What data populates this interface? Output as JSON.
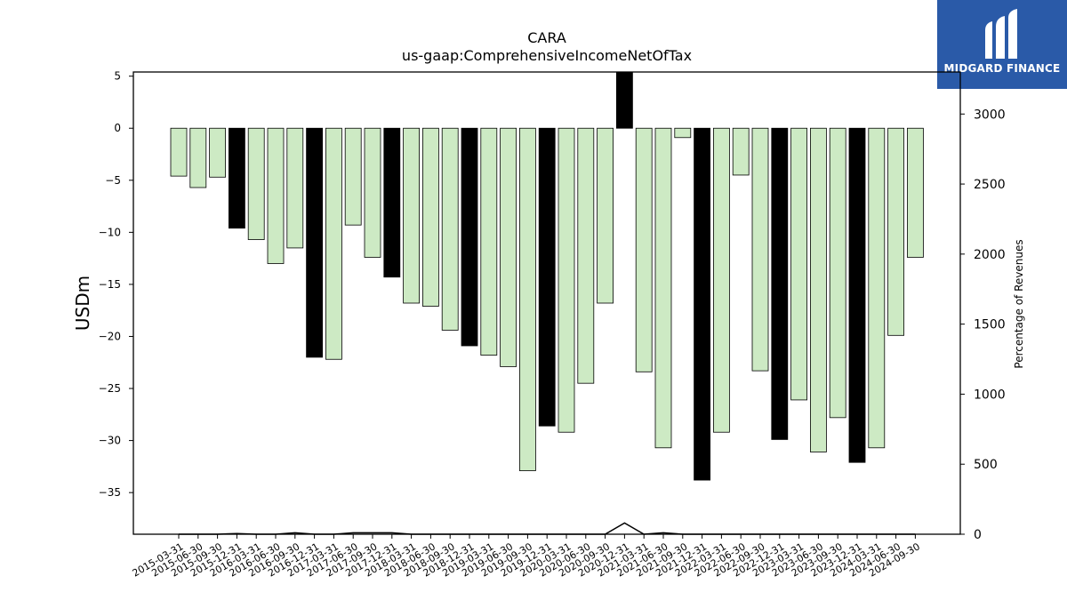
{
  "logo": {
    "text": "MIDGARD FINANCE",
    "icon": "midgard-logo-icon",
    "color": "#2a5aa8"
  },
  "chart_data": {
    "type": "bar",
    "title": "CARA",
    "subtitle": "us-gaap:ComprehensiveIncomeNetOfTax",
    "ylabel": "USDm",
    "y2label": "Percentage of Revenues",
    "ylim": [
      -39,
      5.4
    ],
    "y2lim": [
      0,
      3300
    ],
    "yticks": [
      5,
      0,
      -5,
      -10,
      -15,
      -20,
      -25,
      -30,
      -35
    ],
    "y2ticks": [
      0,
      500,
      1000,
      1500,
      2000,
      2500,
      3000
    ],
    "categories": [
      "2015-03-31",
      "2015-06-30",
      "2015-09-30",
      "2015-12-31",
      "2016-03-31",
      "2016-06-30",
      "2016-09-30",
      "2016-12-31",
      "2017-03-31",
      "2017-06-30",
      "2017-09-30",
      "2017-12-31",
      "2018-03-31",
      "2018-06-30",
      "2018-09-30",
      "2018-12-31",
      "2019-03-31",
      "2019-06-30",
      "2019-09-30",
      "2019-12-31",
      "2020-03-31",
      "2020-06-30",
      "2020-09-30",
      "2020-12-31",
      "2021-03-31",
      "2021-06-30",
      "2021-09-30",
      "2021-12-31",
      "2022-03-31",
      "2022-06-30",
      "2022-09-30",
      "2022-12-31",
      "2023-03-31",
      "2023-06-30",
      "2023-09-30",
      "2023-12-31",
      "2024-03-31",
      "2024-06-30",
      "2024-09-30"
    ],
    "series": [
      {
        "values": [
          -4.6,
          -5.7,
          -4.7,
          -9.6,
          -10.7,
          -13,
          -11.5,
          -22,
          -22.2,
          -9.3,
          -12.4,
          -14.3,
          -16.8,
          -17.1,
          -19.4,
          -20.9,
          -21.8,
          -22.9,
          -32.9,
          -28.6,
          -29.2,
          -24.5,
          -16.8,
          5.4,
          -23.4,
          -30.7,
          -0.9,
          -33.8,
          -29.2,
          -4.5,
          -23.3,
          -29.9,
          -26.1,
          -31.1,
          -27.8,
          -32.1,
          -30.7,
          -19.9,
          -12.4
        ]
      },
      {
        "values": [
          0,
          0,
          0,
          5,
          0,
          0,
          10,
          0,
          0,
          10,
          10,
          10,
          0,
          0,
          0,
          0,
          0,
          0,
          0,
          0,
          0,
          0,
          0,
          80,
          0,
          10,
          0,
          0,
          0,
          0,
          0,
          0,
          0,
          0,
          0,
          0,
          0,
          0,
          0
        ]
      }
    ],
    "highlight_indices": [
      3,
      7,
      11,
      15,
      19,
      23,
      27,
      31,
      35
    ],
    "colors": {
      "bar": "#cdeac4",
      "highlight": "#000000",
      "edge": "#000000"
    },
    "grid": false
  }
}
